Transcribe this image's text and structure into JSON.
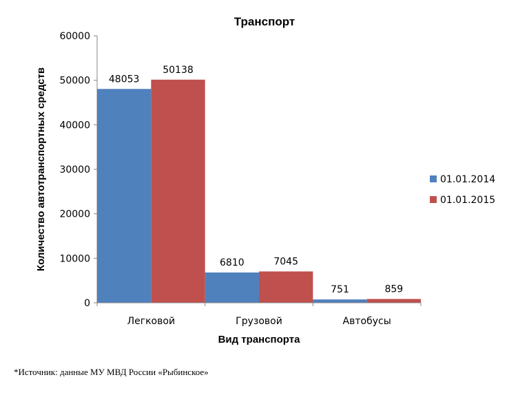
{
  "chart_data": {
    "type": "bar",
    "title": "Транспорт",
    "xlabel": "Вид транспорта",
    "ylabel": "Количество автотранспортных средств",
    "categories": [
      "Легковой",
      "Грузовой",
      "Автобусы"
    ],
    "series": [
      {
        "name": "01.01.2014",
        "color": "#4F81BD",
        "values": [
          48053,
          6810,
          751
        ]
      },
      {
        "name": "01.01.2015",
        "color": "#C0504D",
        "values": [
          50138,
          7045,
          859
        ]
      }
    ],
    "ylim": [
      0,
      60000
    ],
    "yticks": [
      0,
      10000,
      20000,
      30000,
      40000,
      50000,
      60000
    ],
    "grid": false,
    "legend_position": "right"
  },
  "footnote": "*Источник: данные МУ МВД России «Рыбинское»"
}
